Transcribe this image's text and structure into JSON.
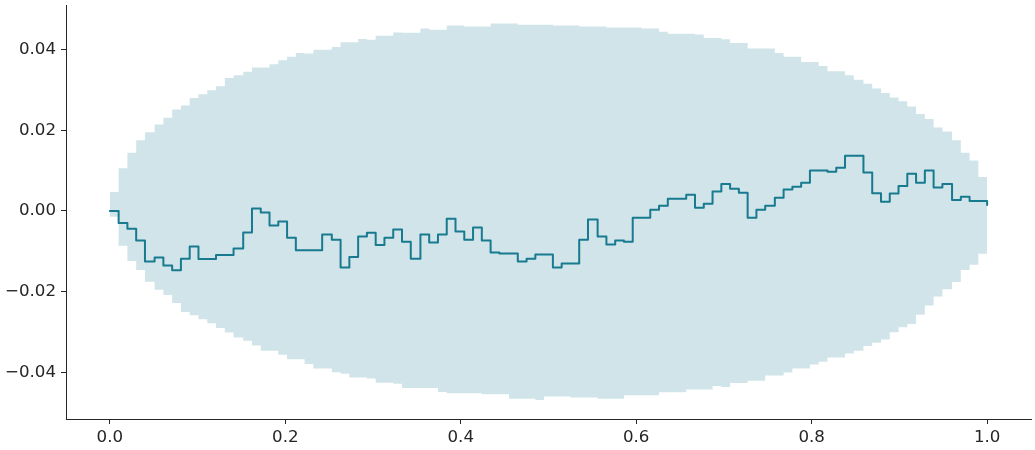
{
  "chart_data": {
    "type": "step",
    "x": [
      0,
      0.01,
      0.02,
      0.03,
      0.04,
      0.051,
      0.061,
      0.071,
      0.081,
      0.091,
      0.101,
      0.111,
      0.121,
      0.131,
      0.141,
      0.152,
      0.162,
      0.172,
      0.182,
      0.192,
      0.202,
      0.212,
      0.222,
      0.232,
      0.242,
      0.253,
      0.263,
      0.273,
      0.283,
      0.293,
      0.303,
      0.313,
      0.323,
      0.333,
      0.343,
      0.354,
      0.364,
      0.374,
      0.384,
      0.394,
      0.404,
      0.414,
      0.424,
      0.434,
      0.444,
      0.455,
      0.465,
      0.475,
      0.485,
      0.495,
      0.505,
      0.515,
      0.525,
      0.535,
      0.545,
      0.556,
      0.566,
      0.576,
      0.586,
      0.596,
      0.606,
      0.616,
      0.626,
      0.636,
      0.646,
      0.657,
      0.667,
      0.677,
      0.687,
      0.697,
      0.707,
      0.717,
      0.727,
      0.737,
      0.747,
      0.758,
      0.768,
      0.778,
      0.788,
      0.798,
      0.808,
      0.818,
      0.828,
      0.838,
      0.848,
      0.859,
      0.869,
      0.879,
      0.889,
      0.899,
      0.909,
      0.919,
      0.929,
      0.939,
      0.949,
      0.96,
      0.97,
      0.98,
      0.99,
      1
    ],
    "series": [
      {
        "color": "#177a8f",
        "values": [
          0.0,
          -0.003,
          -0.0044,
          -0.0073,
          -0.0125,
          -0.0115,
          -0.0135,
          -0.0147,
          -0.0118,
          -0.0088,
          -0.0119,
          -0.0119,
          -0.0109,
          -0.0109,
          -0.0093,
          -0.0053,
          0.0006,
          -0.0004,
          -0.0036,
          -0.0026,
          -0.0066,
          -0.0097,
          -0.0097,
          -0.0097,
          -0.0058,
          -0.0071,
          -0.014,
          -0.0114,
          -0.0063,
          -0.0054,
          -0.0084,
          -0.0066,
          -0.0046,
          -0.0076,
          -0.0118,
          -0.0058,
          -0.0078,
          -0.0058,
          -0.0019,
          -0.0051,
          -0.0071,
          -0.0041,
          -0.0073,
          -0.0103,
          -0.0105,
          -0.0105,
          -0.0125,
          -0.0118,
          -0.0108,
          -0.0108,
          -0.014,
          -0.013,
          -0.013,
          -0.0071,
          -0.0021,
          -0.0063,
          -0.0083,
          -0.0073,
          -0.0076,
          -0.0017,
          -0.0017,
          0.0003,
          0.0013,
          0.003,
          0.003,
          0.004,
          0.0008,
          0.0018,
          0.0048,
          0.0067,
          0.0055,
          0.0045,
          -0.0017,
          0.0003,
          0.0013,
          0.0033,
          0.0053,
          0.006,
          0.007,
          0.01,
          0.01,
          0.0097,
          0.0107,
          0.0137,
          0.0137,
          0.0095,
          0.0044,
          0.0023,
          0.0043,
          0.0062,
          0.0092,
          0.007,
          0.01,
          0.0058,
          0.0067,
          0.0027,
          0.0035,
          0.0025,
          0.0025,
          0.0015
        ],
        "upper": [
          0.0047,
          0.0106,
          0.0144,
          0.0175,
          0.0195,
          0.0214,
          0.0231,
          0.0251,
          0.0261,
          0.028,
          0.0289,
          0.0299,
          0.0309,
          0.0329,
          0.0336,
          0.0345,
          0.0355,
          0.0355,
          0.0363,
          0.0373,
          0.0382,
          0.0391,
          0.039,
          0.0399,
          0.0399,
          0.0406,
          0.0418,
          0.0418,
          0.0426,
          0.0424,
          0.0434,
          0.0434,
          0.0442,
          0.0441,
          0.0441,
          0.0452,
          0.0449,
          0.0449,
          0.0459,
          0.0459,
          0.0457,
          0.0457,
          0.0457,
          0.0464,
          0.0464,
          0.0464,
          0.0461,
          0.0461,
          0.0461,
          0.0461,
          0.0459,
          0.0459,
          0.0459,
          0.0457,
          0.0457,
          0.0457,
          0.0454,
          0.0454,
          0.0454,
          0.0454,
          0.0452,
          0.0452,
          0.0444,
          0.0439,
          0.0439,
          0.0439,
          0.0437,
          0.0428,
          0.0428,
          0.0425,
          0.0416,
          0.0416,
          0.0402,
          0.0402,
          0.0402,
          0.0391,
          0.0382,
          0.0382,
          0.0369,
          0.0369,
          0.0359,
          0.0346,
          0.0346,
          0.0336,
          0.0325,
          0.0315,
          0.0303,
          0.0292,
          0.0281,
          0.0272,
          0.0259,
          0.024,
          0.0228,
          0.0207,
          0.0197,
          0.0175,
          0.0144,
          0.0125,
          0.0084,
          0.0084
        ],
        "lower": [
          -0.0014,
          -0.0086,
          -0.0124,
          -0.0146,
          -0.0175,
          -0.0195,
          -0.0208,
          -0.0228,
          -0.025,
          -0.0258,
          -0.0268,
          -0.0278,
          -0.029,
          -0.0301,
          -0.0313,
          -0.0321,
          -0.0333,
          -0.0346,
          -0.0346,
          -0.0356,
          -0.0367,
          -0.0367,
          -0.0379,
          -0.039,
          -0.039,
          -0.0399,
          -0.0403,
          -0.0412,
          -0.0412,
          -0.0415,
          -0.0425,
          -0.0425,
          -0.0428,
          -0.0438,
          -0.0438,
          -0.0438,
          -0.0438,
          -0.0448,
          -0.0451,
          -0.0451,
          -0.0451,
          -0.0451,
          -0.0454,
          -0.0454,
          -0.0454,
          -0.0465,
          -0.0465,
          -0.0465,
          -0.0468,
          -0.0459,
          -0.0459,
          -0.0459,
          -0.0462,
          -0.0462,
          -0.0462,
          -0.0465,
          -0.0465,
          -0.0465,
          -0.0456,
          -0.0456,
          -0.0456,
          -0.0456,
          -0.0449,
          -0.0449,
          -0.0449,
          -0.0442,
          -0.0442,
          -0.0442,
          -0.0433,
          -0.0436,
          -0.0426,
          -0.0426,
          -0.042,
          -0.042,
          -0.0407,
          -0.0407,
          -0.04,
          -0.039,
          -0.039,
          -0.038,
          -0.0373,
          -0.0363,
          -0.0363,
          -0.0353,
          -0.0346,
          -0.0334,
          -0.0326,
          -0.0318,
          -0.03,
          -0.0288,
          -0.028,
          -0.0257,
          -0.0234,
          -0.0212,
          -0.0194,
          -0.0176,
          -0.0146,
          -0.0133,
          -0.0106,
          -0.0106
        ]
      }
    ],
    "xlim": [
      -0.05,
      1.05
    ],
    "xticks": [
      {
        "value": 0,
        "label": "0.0"
      },
      0.2,
      0.4,
      0.6,
      0.8,
      {
        "value": 1,
        "label": "1.0"
      }
    ],
    "ylim": [
      -0.0515,
      0.051
    ],
    "yticks": [
      {
        "value": -0.04,
        "label": "−0.04"
      },
      {
        "value": -0.02,
        "label": "−0.02"
      },
      {
        "value": 0,
        "label": "0.00"
      },
      0.02,
      0.04
    ]
  }
}
